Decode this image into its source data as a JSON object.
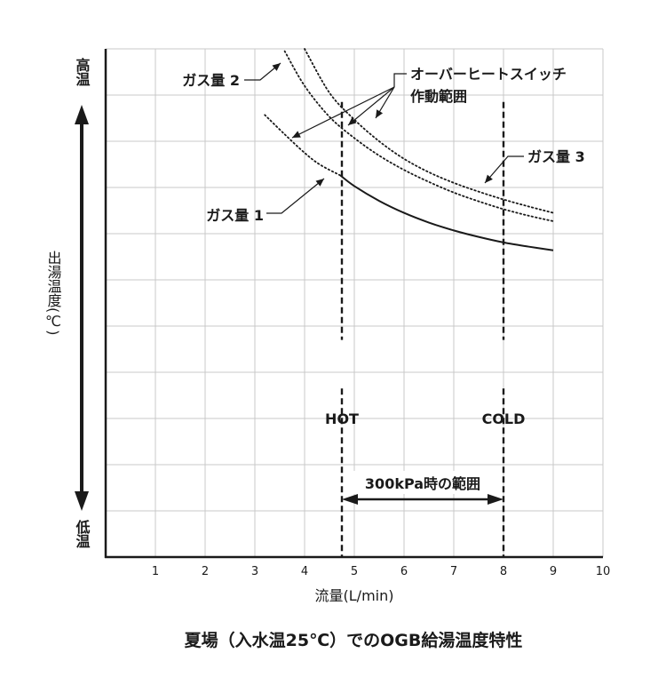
{
  "chart_data": {
    "type": "line",
    "title": "夏場（入水温25℃）でのOGB給湯温度特性",
    "xlabel": "流量(L/min)",
    "ylabel": "出湯温度(℃)",
    "y_top_label": "高温",
    "y_bottom_label": "低温",
    "xlim": [
      0,
      10
    ],
    "ylim": [
      0,
      11
    ],
    "x_ticks": [
      1,
      2,
      3,
      4,
      5,
      6,
      7,
      8,
      9,
      10
    ],
    "grid": true,
    "series": [
      {
        "name": "ガス量1",
        "style": "dotted",
        "points": [
          [
            3.2,
            9.57
          ],
          [
            3.6,
            9.15
          ],
          [
            4.0,
            8.75
          ],
          [
            4.3,
            8.5
          ],
          [
            4.72,
            8.26
          ]
        ]
      },
      {
        "name": "ガス量1",
        "style": "solid",
        "points": [
          [
            4.72,
            8.26
          ],
          [
            5.0,
            8.03
          ],
          [
            5.5,
            7.71
          ],
          [
            6.0,
            7.45
          ],
          [
            6.5,
            7.24
          ],
          [
            7.0,
            7.07
          ],
          [
            7.5,
            6.93
          ],
          [
            8.0,
            6.81
          ],
          [
            8.5,
            6.72
          ],
          [
            9.0,
            6.64
          ]
        ]
      },
      {
        "name": "ガス量2",
        "style": "dotted",
        "points": [
          [
            3.6,
            10.95
          ],
          [
            4.0,
            10.2
          ],
          [
            4.5,
            9.53
          ],
          [
            5.0,
            9.07
          ],
          [
            5.5,
            8.69
          ],
          [
            6.0,
            8.38
          ],
          [
            6.5,
            8.12
          ],
          [
            7.0,
            7.89
          ],
          [
            7.5,
            7.7
          ],
          [
            8.0,
            7.53
          ],
          [
            8.5,
            7.39
          ],
          [
            9.0,
            7.27
          ]
        ]
      },
      {
        "name": "ガス量3",
        "style": "dotted",
        "points": [
          [
            4.0,
            11.0
          ],
          [
            4.5,
            10.05
          ],
          [
            5.0,
            9.47
          ],
          [
            5.5,
            9.0
          ],
          [
            6.0,
            8.62
          ],
          [
            6.5,
            8.33
          ],
          [
            7.0,
            8.1
          ],
          [
            7.5,
            7.91
          ],
          [
            8.0,
            7.74
          ],
          [
            8.5,
            7.59
          ],
          [
            9.0,
            7.45
          ]
        ]
      }
    ],
    "vertical_markers": [
      {
        "label": "HOT",
        "x": 4.75
      },
      {
        "label": "COLD",
        "x": 8.0
      }
    ],
    "range_annotation": {
      "label": "300kPa時の範囲",
      "from": 4.75,
      "to": 8.0
    },
    "annotations": {
      "gas1": "ガス量 1",
      "gas2": "ガス量 2",
      "gas3": "ガス量 3",
      "switch_line1": "オーバーヒートスイッチ",
      "switch_line2": "作動範囲"
    }
  }
}
